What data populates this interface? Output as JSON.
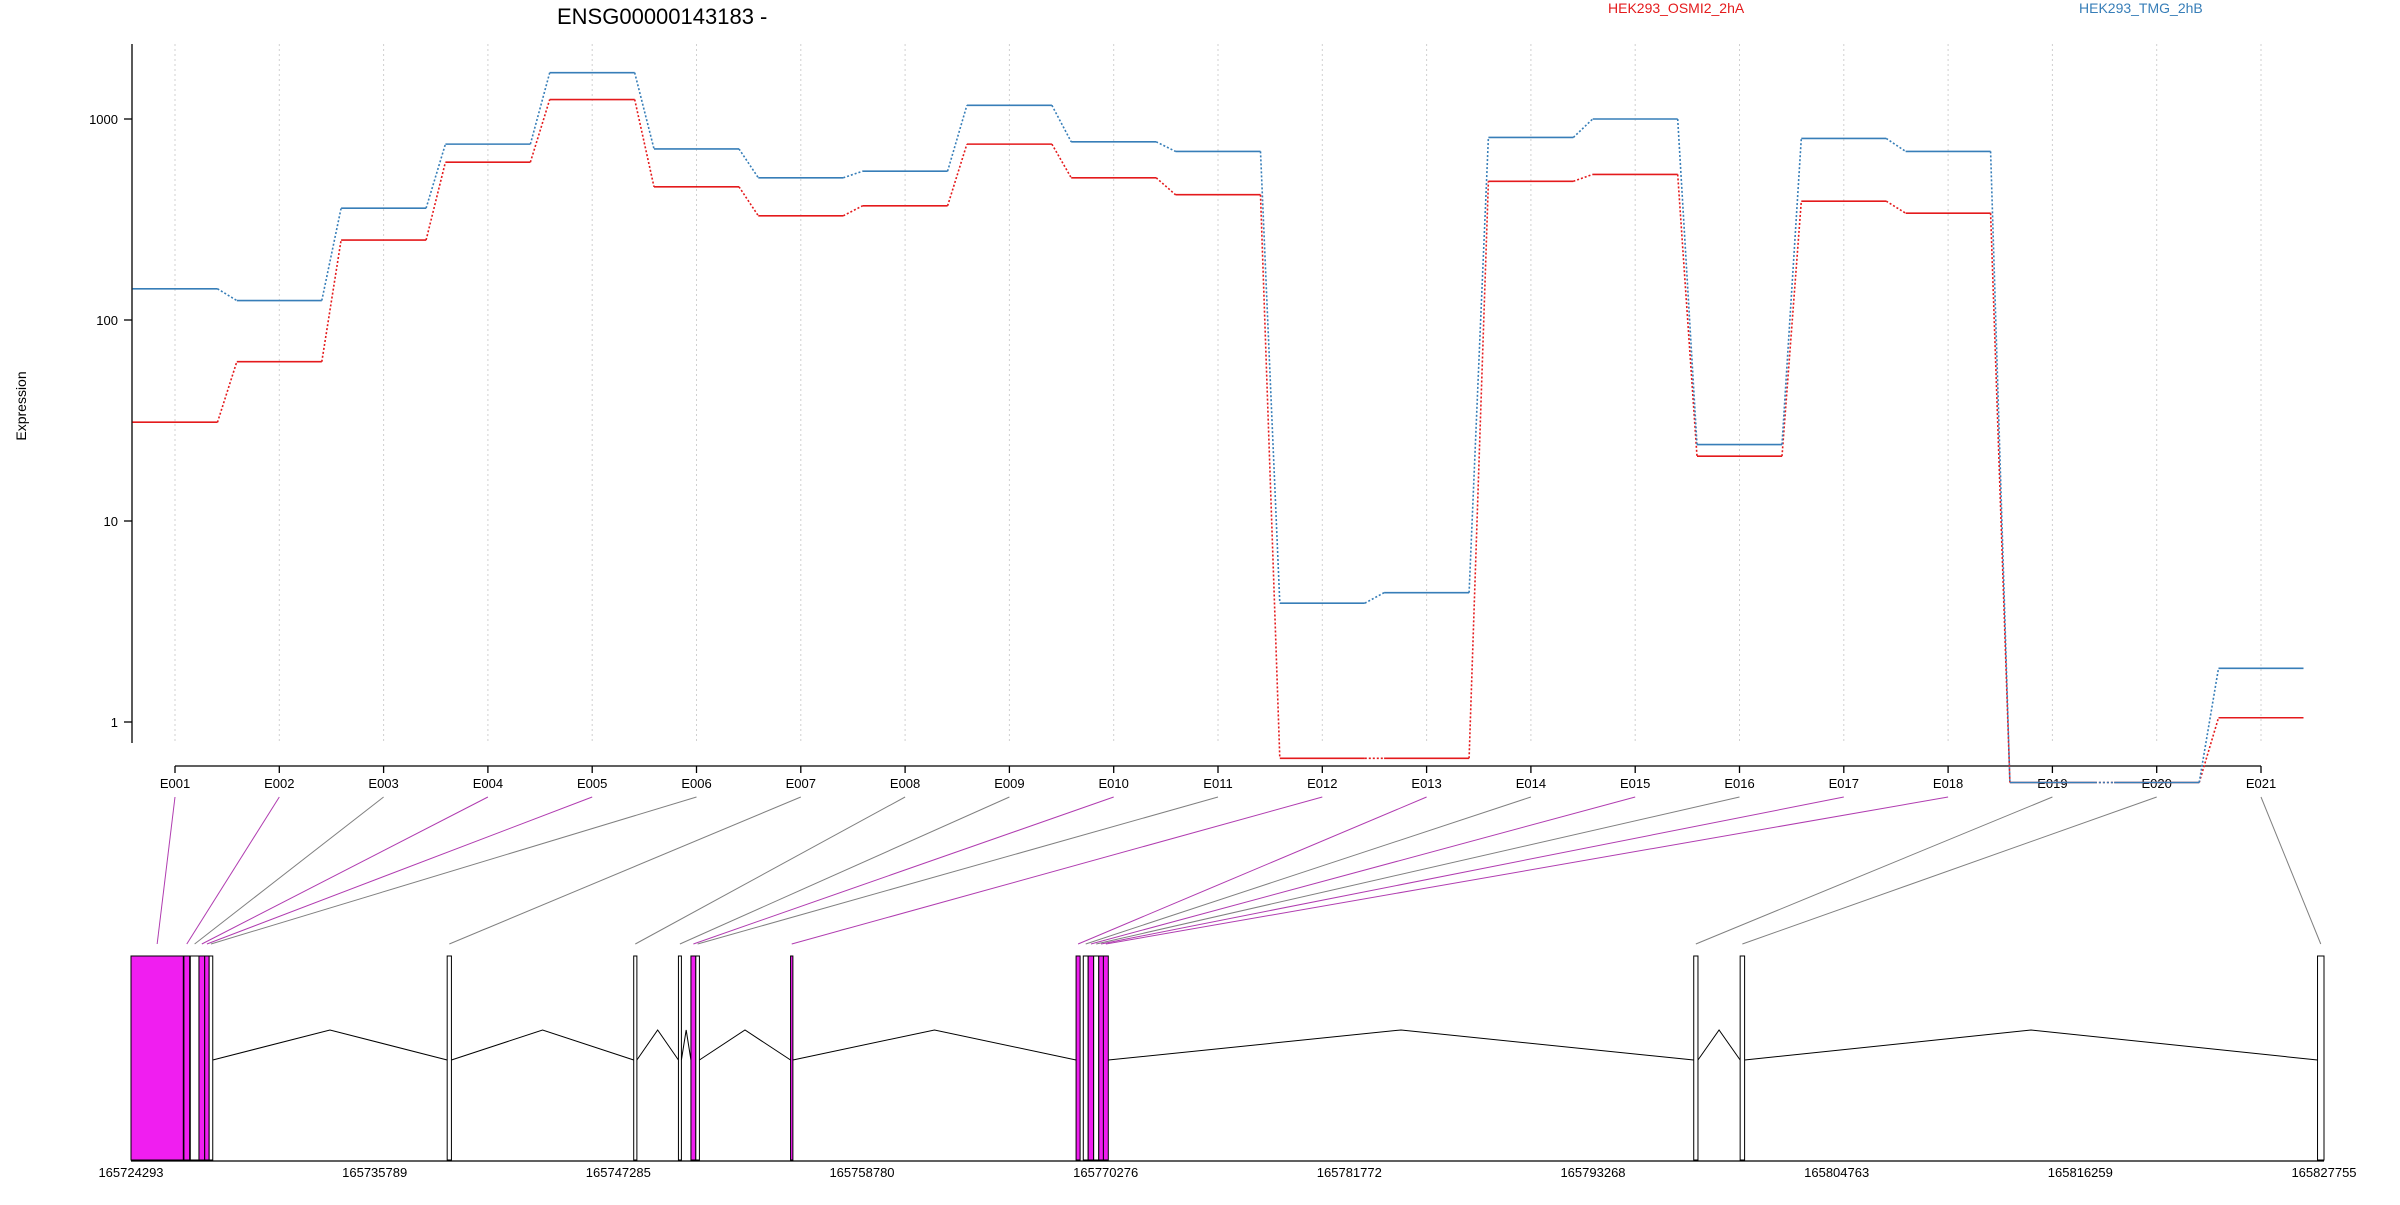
{
  "chart_data": {
    "type": "line",
    "title": "ENSG00000143183 -",
    "ylabel": "Expression",
    "xlabel": "",
    "y_scale": "log",
    "ylim": [
      0.5,
      2300
    ],
    "y_ticks": [
      {
        "value": 1,
        "label": "1"
      },
      {
        "value": 10,
        "label": "10"
      },
      {
        "value": 100,
        "label": "100"
      },
      {
        "value": 1000,
        "label": "1000"
      }
    ],
    "grid": "vertical dotted",
    "legend_placement": "top",
    "categories": [
      "E001",
      "E002",
      "E003",
      "E004",
      "E005",
      "E006",
      "E007",
      "E008",
      "E009",
      "E010",
      "E011",
      "E012",
      "E013",
      "E014",
      "E015",
      "E016",
      "E017",
      "E018",
      "E019",
      "E020",
      "E021"
    ],
    "series": [
      {
        "name": "HEK293_OSMI2_2hA",
        "color": "#e41a1c",
        "values": [
          31,
          62,
          250,
          610,
          1250,
          460,
          330,
          370,
          750,
          510,
          420,
          0.66,
          0.66,
          490,
          530,
          21,
          390,
          340,
          0.5,
          0.5,
          1.05
        ]
      },
      {
        "name": "HEK293_TMG_2hB",
        "color": "#377eb8",
        "values": [
          143,
          125,
          360,
          750,
          1700,
          710,
          510,
          550,
          1170,
          770,
          690,
          3.9,
          4.4,
          810,
          1000,
          24,
          800,
          690,
          0.5,
          0.5,
          1.85
        ]
      }
    ],
    "genomic_axis": {
      "tick_labels": [
        "165724293",
        "165735789",
        "165747285",
        "165758780",
        "165770276",
        "165781772",
        "165793268",
        "165804763",
        "165816259",
        "165827755"
      ],
      "start": 165724293,
      "end": 165827755
    },
    "exon_link_colors": {
      "highlighted": "#b03cb0",
      "normal": "#808080",
      "highlight_fill": "#f01ef0",
      "normal_fill": "#ffffff"
    },
    "exons": [
      {
        "id": "E001",
        "start": 165724293,
        "end": 165726760,
        "highlighted": true
      },
      {
        "id": "E002",
        "start": 165726790,
        "end": 165727060,
        "highlighted": true
      },
      {
        "id": "E003",
        "start": 165727090,
        "end": 165727500,
        "highlighted": false
      },
      {
        "id": "E004",
        "start": 165727500,
        "end": 165727770,
        "highlighted": true
      },
      {
        "id": "E005",
        "start": 165727770,
        "end": 165727980,
        "highlighted": true
      },
      {
        "id": "E006",
        "start": 165727980,
        "end": 165728150,
        "highlighted": false
      },
      {
        "id": "E007",
        "start": 165739210,
        "end": 165739410,
        "highlighted": false
      },
      {
        "id": "E008",
        "start": 165748010,
        "end": 165748160,
        "highlighted": false
      },
      {
        "id": "E009",
        "start": 165750120,
        "end": 165750260,
        "highlighted": false
      },
      {
        "id": "E010",
        "start": 165750710,
        "end": 165750940,
        "highlighted": true
      },
      {
        "id": "E011",
        "start": 165750940,
        "end": 165751110,
        "highlighted": false
      },
      {
        "id": "E012",
        "start": 165755410,
        "end": 165755520,
        "highlighted": true
      },
      {
        "id": "E013",
        "start": 165768880,
        "end": 165769070,
        "highlighted": true
      },
      {
        "id": "E014",
        "start": 165769220,
        "end": 165769450,
        "highlighted": false
      },
      {
        "id": "E015",
        "start": 165769450,
        "end": 165769710,
        "highlighted": true
      },
      {
        "id": "E016",
        "start": 165769710,
        "end": 165769950,
        "highlighted": false
      },
      {
        "id": "E017",
        "start": 165769950,
        "end": 165770170,
        "highlighted": true
      },
      {
        "id": "E018",
        "start": 165770170,
        "end": 165770400,
        "highlighted": true
      },
      {
        "id": "E019",
        "start": 165798020,
        "end": 165798220,
        "highlighted": false
      },
      {
        "id": "E020",
        "start": 165800210,
        "end": 165800420,
        "highlighted": false
      },
      {
        "id": "E021",
        "start": 165827450,
        "end": 165827755,
        "highlighted": false
      }
    ]
  }
}
